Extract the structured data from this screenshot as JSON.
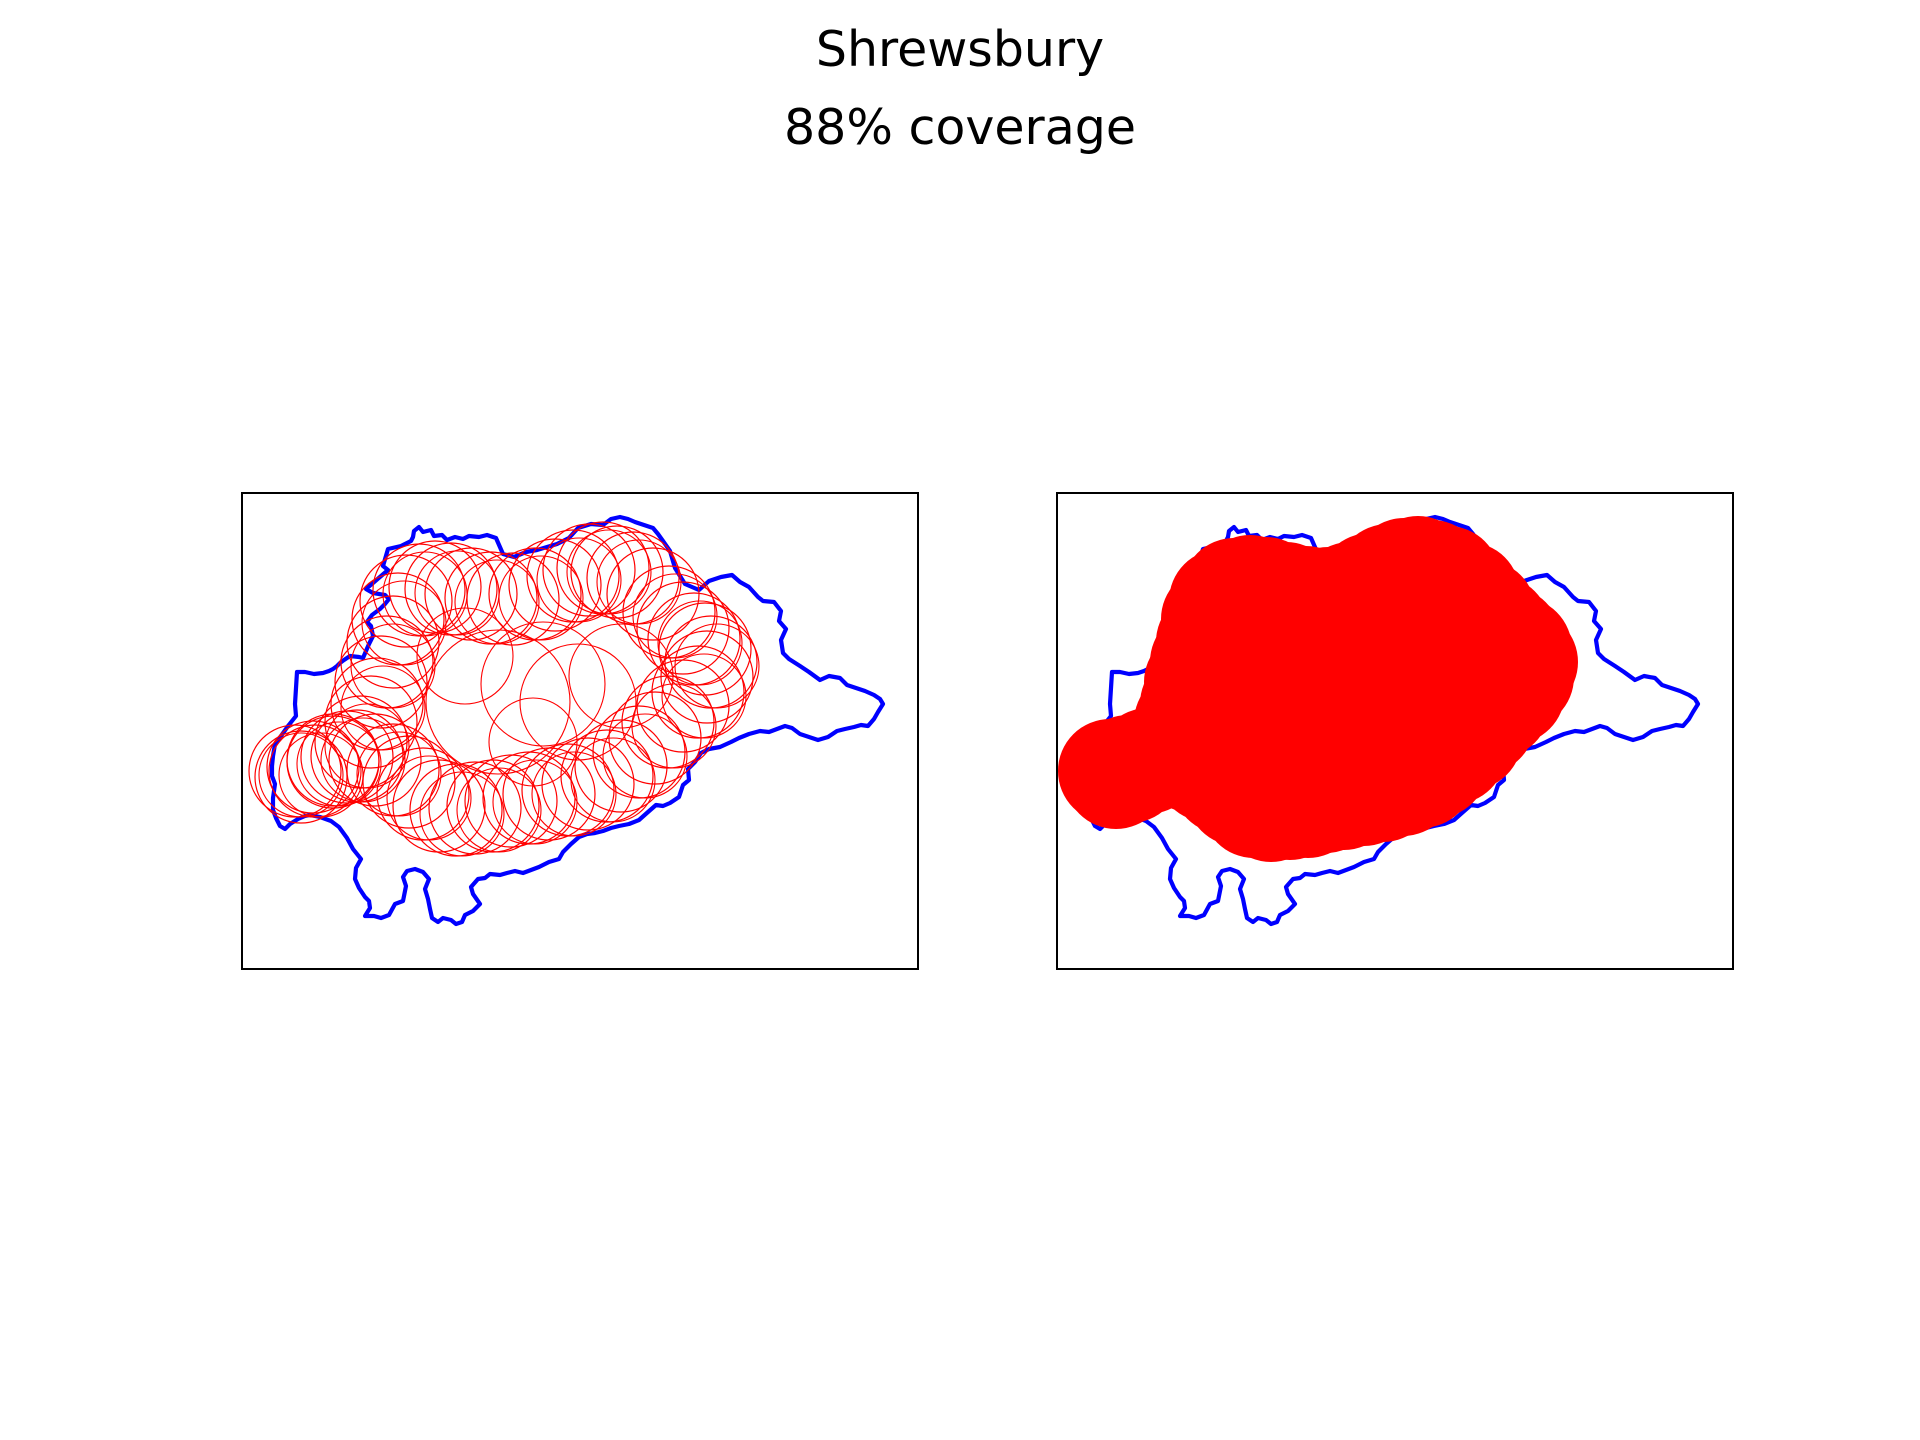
{
  "figure": {
    "title": "Shrewsbury",
    "subtitle": "88% coverage"
  },
  "panels": [
    {
      "id": "left",
      "style": "circle-outlines"
    },
    {
      "id": "right",
      "style": "filled-union"
    }
  ],
  "map": {
    "boundary_color": "#0000ff",
    "coverage_color": "#ff0000",
    "frame_color": "#000000",
    "coverage_percent": 88
  }
}
